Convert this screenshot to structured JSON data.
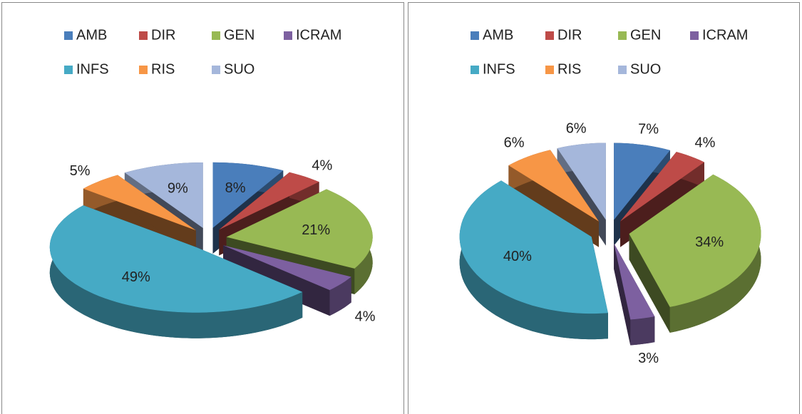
{
  "chart_data": [
    {
      "type": "pie3d",
      "categories": [
        "AMB",
        "DIR",
        "GEN",
        "ICRAM",
        "INFS",
        "RIS",
        "SUO"
      ],
      "colors": [
        "#4a7ebb",
        "#be4b48",
        "#98b954",
        "#7d60a0",
        "#46aac5",
        "#f79646",
        "#a5b7db"
      ],
      "values": [
        8,
        4,
        21,
        4,
        49,
        5,
        9
      ],
      "value_labels": [
        "8%",
        "4%",
        "21%",
        "4%",
        "49%",
        "5%",
        "9%"
      ]
    },
    {
      "type": "pie3d",
      "categories": [
        "AMB",
        "DIR",
        "GEN",
        "ICRAM",
        "INFS",
        "RIS",
        "SUO"
      ],
      "colors": [
        "#4a7ebb",
        "#be4b48",
        "#98b954",
        "#7d60a0",
        "#46aac5",
        "#f79646",
        "#a5b7db"
      ],
      "values": [
        7,
        4,
        34,
        3,
        40,
        6,
        6
      ],
      "value_labels": [
        "7%",
        "4%",
        "34%",
        "3%",
        "40%",
        "6%",
        "6%"
      ]
    }
  ]
}
